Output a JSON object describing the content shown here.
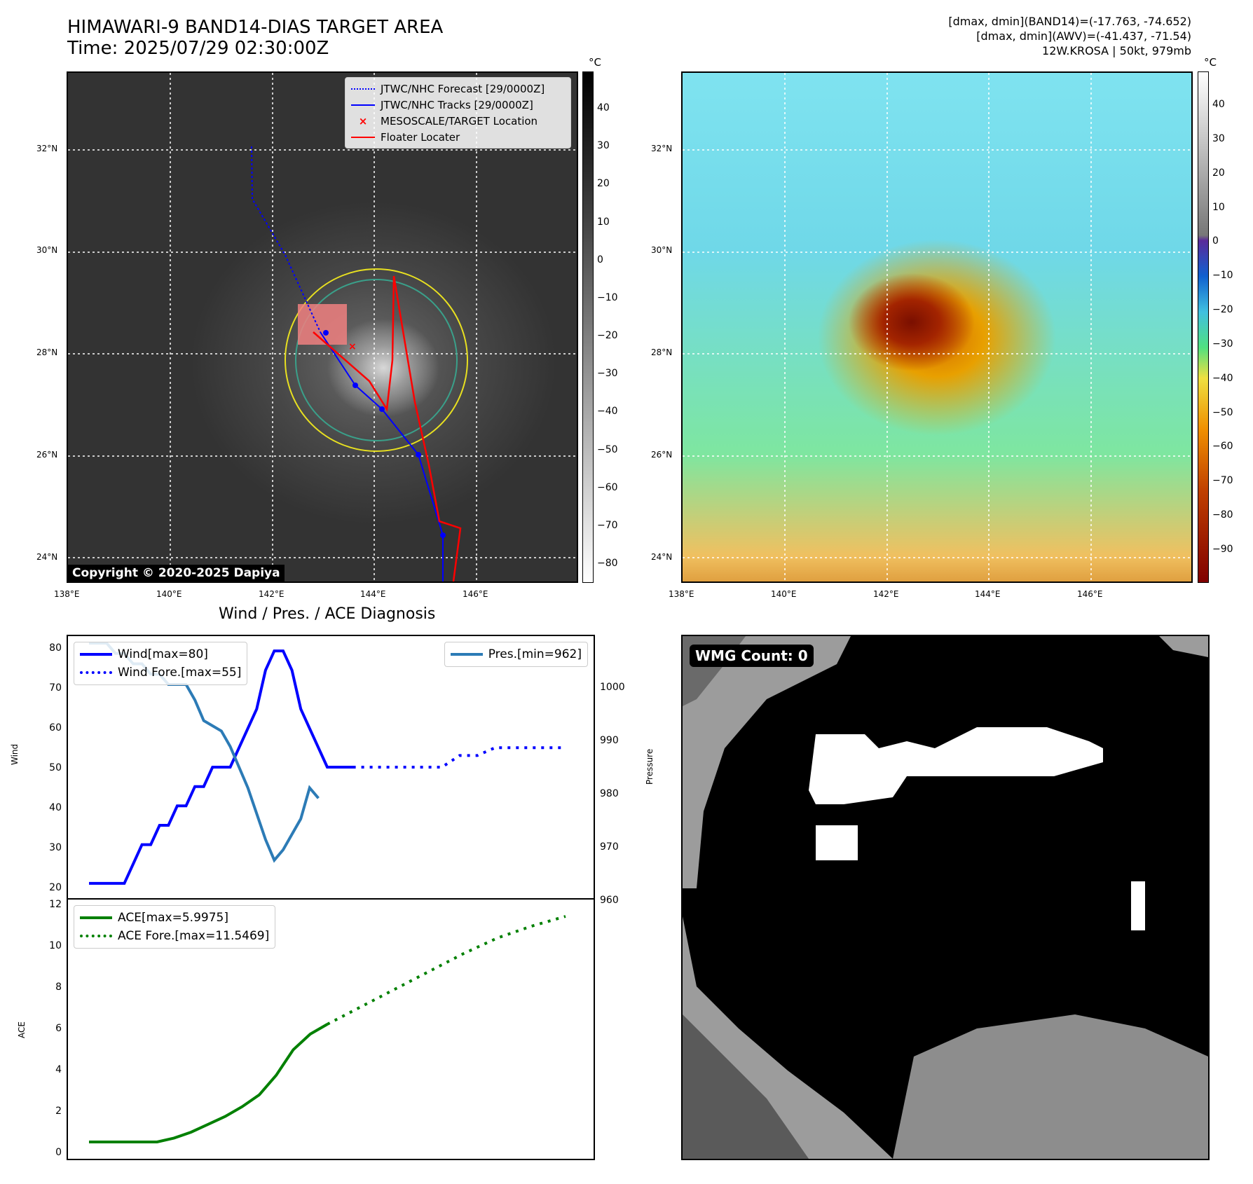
{
  "header": {
    "title_line1": "HIMAWARI-9 BAND14-DIAS TARGET AREA",
    "title_line2": "Time: 2025/07/29 02:30:00Z",
    "info_line1": "[dmax, dmin](BAND14)=(-17.763, -74.652)",
    "info_line2": "[dmax, dmin](AWV)=(-41.437, -71.54)",
    "info_line3": "12W.KROSA | 50kt, 979mb"
  },
  "maps": {
    "lat_labels": [
      "32°N",
      "30°N",
      "28°N",
      "26°N",
      "24°N"
    ],
    "lon_labels": [
      "138°E",
      "140°E",
      "142°E",
      "144°E",
      "146°E"
    ],
    "copyright": "Copyright © 2020-2025 Dapiya",
    "legend": [
      {
        "label": "JTWC/NHC Forecast [29/0000Z]",
        "color": "#0000ff",
        "style": "dotted"
      },
      {
        "label": "JTWC/NHC Tracks [29/0000Z]",
        "color": "#0000ff",
        "style": "line-dot"
      },
      {
        "label": "MESOSCALE/TARGET Location",
        "color": "#ff0000",
        "style": "x"
      },
      {
        "label": "Floater Locater",
        "color": "#ff0000",
        "style": "line"
      }
    ],
    "ir_colorbar": {
      "unit": "°C",
      "ticks": [
        "40",
        "30",
        "20",
        "10",
        "0",
        "−10",
        "−20",
        "−30",
        "−40",
        "−50",
        "−60",
        "−70",
        "−80"
      ]
    },
    "awv_colorbar": {
      "unit": "°C",
      "ticks": [
        "40",
        "30",
        "20",
        "10",
        "0",
        "−10",
        "−20",
        "−30",
        "−40",
        "−50",
        "−60",
        "−70",
        "−80",
        "−90"
      ]
    }
  },
  "diagnosis": {
    "title": "Wind / Pres. / ACE Diagnosis",
    "wind_ylabel": "Wind",
    "pres_ylabel": "Pressure",
    "ace_ylabel": "ACE",
    "wind_ticks": [
      "80",
      "70",
      "60",
      "50",
      "40",
      "30",
      "20"
    ],
    "pres_ticks": [
      "1000",
      "990",
      "980",
      "970",
      "960"
    ],
    "ace_ticks": [
      "12",
      "10",
      "8",
      "6",
      "4",
      "2",
      "0"
    ],
    "legend_wind": "Wind[max=80]",
    "legend_wind_fore": "Wind Fore.[max=55]",
    "legend_pres": "Pres.[min=962]",
    "legend_ace": "ACE[max=5.9975]",
    "legend_ace_fore": "ACE Fore.[max=11.5469]"
  },
  "wmg": {
    "badge": "WMG Count: 0"
  },
  "chart_data": [
    {
      "type": "line",
      "title": "Wind / Pres. / ACE Diagnosis",
      "ylabel": "Wind",
      "ylim": [
        18,
        82
      ],
      "series": [
        {
          "name": "Wind[max=80]",
          "x": [
            0,
            1,
            2,
            3,
            4,
            5,
            6,
            7,
            8,
            9,
            10,
            11,
            12,
            13,
            14,
            15,
            16,
            17,
            18,
            19,
            20,
            21,
            22,
            23,
            24,
            25,
            26,
            27,
            28,
            29,
            30
          ],
          "values": [
            20,
            20,
            20,
            20,
            20,
            25,
            30,
            30,
            35,
            35,
            40,
            40,
            45,
            45,
            50,
            50,
            50,
            55,
            60,
            65,
            75,
            80,
            80,
            75,
            65,
            60,
            55,
            50,
            50,
            50,
            50
          ]
        },
        {
          "name": "Wind Fore.[max=55]",
          "x": [
            28,
            30,
            32,
            34,
            36,
            38,
            40,
            42,
            44,
            46,
            48,
            50,
            52,
            54
          ],
          "values": [
            50,
            50,
            50,
            50,
            50,
            50,
            50,
            53,
            53,
            55,
            55,
            55,
            55,
            55
          ]
        }
      ]
    },
    {
      "type": "line",
      "ylabel": "Pressure",
      "ylim": [
        960,
        1008
      ],
      "series": [
        {
          "name": "Pres.[min=962]",
          "x": [
            0,
            1,
            2,
            3,
            4,
            5,
            6,
            7,
            8,
            9,
            10,
            11,
            12,
            13,
            14,
            15,
            16,
            17,
            18,
            19,
            20,
            21,
            22,
            23,
            24,
            25,
            26
          ],
          "values": [
            1008,
            1008,
            1008,
            1006,
            1006,
            1004,
            1004,
            1002,
            1002,
            1000,
            1000,
            1000,
            997,
            993,
            992,
            991,
            988,
            984,
            980,
            975,
            970,
            966,
            968,
            971,
            974,
            980,
            978
          ]
        }
      ]
    },
    {
      "type": "line",
      "ylabel": "ACE",
      "ylim": [
        -0.5,
        12
      ],
      "series": [
        {
          "name": "ACE[max=5.9975]",
          "x": [
            0,
            2,
            4,
            6,
            8,
            10,
            12,
            14,
            16,
            18,
            20,
            22,
            24,
            26,
            28
          ],
          "values": [
            0,
            0,
            0,
            0,
            0,
            0.2,
            0.5,
            0.9,
            1.3,
            1.8,
            2.4,
            3.4,
            4.7,
            5.5,
            6.0
          ]
        },
        {
          "name": "ACE Fore.[max=11.5469]",
          "x": [
            28,
            32,
            36,
            40,
            44,
            48,
            52,
            56
          ],
          "values": [
            6.0,
            6.9,
            7.8,
            8.7,
            9.6,
            10.4,
            11.0,
            11.5
          ]
        }
      ]
    }
  ]
}
